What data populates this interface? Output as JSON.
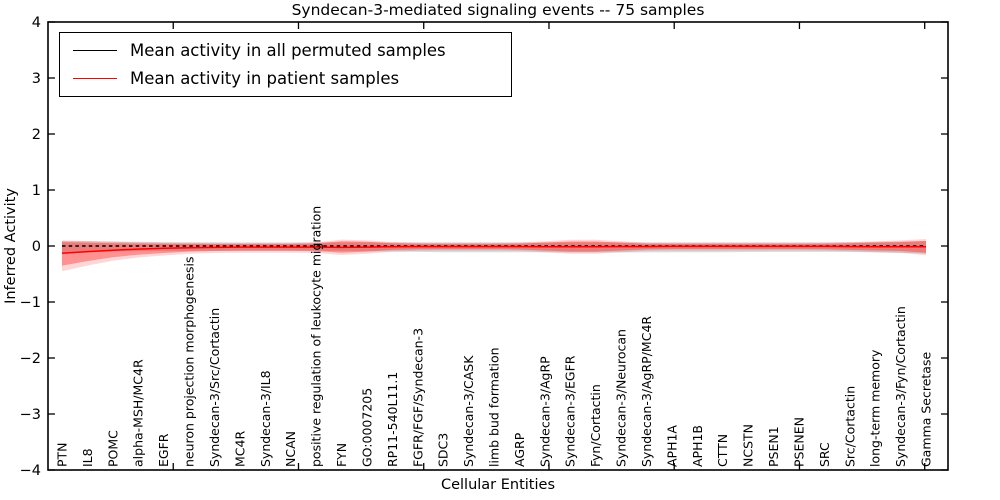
{
  "chart_data": {
    "type": "line",
    "title": "Syndecan-3-mediated signaling events -- 75 samples",
    "xlabel": "Cellular Entities",
    "ylabel": "Inferred Activity",
    "ylim": [
      -4,
      4
    ],
    "xlim": [
      0,
      35.93
    ],
    "xticks": [
      5,
      10,
      15,
      20,
      25,
      30,
      35
    ],
    "yticks": [
      {
        "label": "4",
        "value": 4
      },
      {
        "label": "3",
        "value": 3
      },
      {
        "label": "2",
        "value": 2
      },
      {
        "label": "1",
        "value": 1
      },
      {
        "label": "0",
        "value": 0
      },
      {
        "label": "−1",
        "value": -1
      },
      {
        "label": "−2",
        "value": -2
      },
      {
        "label": "−3",
        "value": -3
      },
      {
        "label": "−4",
        "value": -4
      }
    ],
    "grid": false,
    "legend_position": "upper left",
    "categories": [
      "PTN",
      "IL8",
      "POMC",
      "alpha-MSH/MC4R",
      "EGFR",
      "neuron projection morphogenesis",
      "Syndecan-3/Src/Cortactin",
      "MC4R",
      "Syndecan-3/IL8",
      "NCAN",
      "positive regulation of leukocyte migration",
      "FYN",
      "GO:0007205",
      "RP11-540L11.1",
      "FGFR/FGF/Syndecan-3",
      "SDC3",
      "Syndecan-3/CASK",
      "limb bud formation",
      "AGRP",
      "Syndecan-3/AgRP",
      "Syndecan-3/EGFR",
      "Fyn/Cortactin",
      "Syndecan-3/Neurocan",
      "Syndecan-3/AgRP/MC4R",
      "APH1A",
      "APH1B",
      "CTTN",
      "NCSTN",
      "PSEN1",
      "PSENEN",
      "SRC",
      "Src/Cortactin",
      "long-term memory",
      "Syndecan-3/Fyn/Cortactin",
      "Gamma Secretase"
    ],
    "series": [
      {
        "name": "Mean activity in all permuted samples",
        "color": "#000000",
        "line_style": "dashed",
        "values": [
          0,
          0,
          0,
          0,
          0,
          0,
          0,
          0,
          0,
          0,
          0,
          0,
          0,
          0,
          0,
          0,
          0,
          0,
          0,
          0,
          0,
          0,
          0,
          0,
          0,
          0,
          0,
          0,
          0,
          0,
          0,
          0,
          0,
          0,
          0
        ],
        "band_color": "#999999",
        "band_opacity": 0.35,
        "band_upper": [
          0.09,
          0.085,
          0.08,
          0.075,
          0.07,
          0.068,
          0.066,
          0.065,
          0.065,
          0.065,
          0.065,
          0.065,
          0.065,
          0.065,
          0.065,
          0.065,
          0.065,
          0.065,
          0.065,
          0.065,
          0.065,
          0.065,
          0.065,
          0.065,
          0.065,
          0.065,
          0.065,
          0.065,
          0.065,
          0.065,
          0.065,
          0.068,
          0.072,
          0.08,
          0.09
        ],
        "band_lower": [
          -0.12,
          -0.11,
          -0.1,
          -0.095,
          -0.09,
          -0.088,
          -0.086,
          -0.085,
          -0.085,
          -0.085,
          -0.085,
          -0.09,
          -0.095,
          -0.1,
          -0.105,
          -0.11,
          -0.11,
          -0.11,
          -0.11,
          -0.11,
          -0.115,
          -0.115,
          -0.115,
          -0.115,
          -0.11,
          -0.11,
          -0.11,
          -0.108,
          -0.105,
          -0.105,
          -0.105,
          -0.108,
          -0.115,
          -0.12,
          -0.135
        ]
      },
      {
        "name": "Mean activity in patient samples",
        "color": "#ff0000",
        "line_style": "solid",
        "values": [
          -0.13,
          -0.1,
          -0.075,
          -0.055,
          -0.04,
          -0.03,
          -0.025,
          -0.02,
          -0.02,
          -0.02,
          -0.02,
          -0.025,
          -0.02,
          -0.015,
          -0.01,
          -0.01,
          -0.01,
          -0.01,
          -0.01,
          -0.015,
          -0.015,
          -0.015,
          -0.01,
          -0.01,
          -0.008,
          -0.008,
          -0.008,
          -0.008,
          -0.008,
          -0.008,
          -0.008,
          -0.01,
          -0.012,
          -0.012,
          -0.015
        ],
        "band_color": "#ff0000",
        "band_opacity": 0.32,
        "band_upper": [
          0.07,
          0.06,
          0.05,
          0.045,
          0.04,
          0.038,
          0.036,
          0.036,
          0.036,
          0.036,
          0.045,
          0.085,
          0.075,
          0.05,
          0.04,
          0.038,
          0.038,
          0.038,
          0.042,
          0.06,
          0.08,
          0.08,
          0.06,
          0.04,
          0.038,
          0.038,
          0.038,
          0.038,
          0.038,
          0.038,
          0.04,
          0.05,
          0.06,
          0.07,
          0.09
        ],
        "band_lower": [
          -0.35,
          -0.27,
          -0.2,
          -0.155,
          -0.125,
          -0.1,
          -0.09,
          -0.085,
          -0.085,
          -0.085,
          -0.09,
          -0.12,
          -0.1,
          -0.07,
          -0.06,
          -0.058,
          -0.058,
          -0.058,
          -0.062,
          -0.08,
          -0.1,
          -0.1,
          -0.08,
          -0.06,
          -0.055,
          -0.055,
          -0.055,
          -0.055,
          -0.055,
          -0.055,
          -0.058,
          -0.07,
          -0.08,
          -0.09,
          -0.12
        ],
        "band_outer_opacity": 0.16,
        "band_outer_upper": [
          0.1,
          0.09,
          0.075,
          0.065,
          0.058,
          0.055,
          0.052,
          0.052,
          0.052,
          0.052,
          0.065,
          0.115,
          0.1,
          0.07,
          0.058,
          0.055,
          0.055,
          0.055,
          0.06,
          0.085,
          0.11,
          0.11,
          0.085,
          0.058,
          0.055,
          0.055,
          0.055,
          0.055,
          0.055,
          0.055,
          0.058,
          0.07,
          0.085,
          0.1,
          0.125
        ],
        "band_outer_lower": [
          -0.45,
          -0.35,
          -0.265,
          -0.205,
          -0.17,
          -0.14,
          -0.125,
          -0.12,
          -0.12,
          -0.12,
          -0.125,
          -0.16,
          -0.14,
          -0.1,
          -0.085,
          -0.08,
          -0.08,
          -0.08,
          -0.085,
          -0.11,
          -0.14,
          -0.14,
          -0.11,
          -0.085,
          -0.08,
          -0.08,
          -0.08,
          -0.08,
          -0.08,
          -0.08,
          -0.082,
          -0.095,
          -0.11,
          -0.125,
          -0.165
        ]
      }
    ]
  }
}
